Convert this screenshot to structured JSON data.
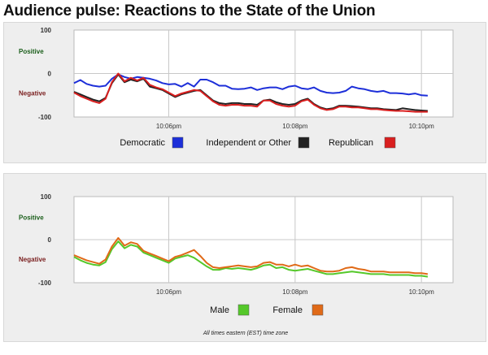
{
  "page": {
    "title": "Audience pulse: Reactions to the State of the Union"
  },
  "colors": {
    "democratic": "#1d2fd9",
    "independent": "#222222",
    "republican": "#d91f1f",
    "male": "#55c82a",
    "female": "#e06a18"
  },
  "footnote": "All times eastern (EST) time zone",
  "chart_data": [
    {
      "type": "line",
      "title": "",
      "xlabel": "",
      "ylabel": "",
      "y_category_labels": {
        "positive": "Positive",
        "negative": "Negative"
      },
      "ylim": [
        -100,
        100
      ],
      "y_ticks": [
        "100",
        "0",
        "-100"
      ],
      "xlim": [
        0,
        60
      ],
      "x_ticks": [
        {
          "t": 15,
          "label": "10:06pm"
        },
        {
          "t": 35,
          "label": "10:08pm"
        },
        {
          "t": 55,
          "label": "10:10pm"
        }
      ],
      "grid": true,
      "legend_position": "bottom",
      "x": [
        0,
        1,
        2,
        3,
        4,
        5,
        6,
        7,
        8,
        9,
        10,
        11,
        12,
        13,
        14,
        15,
        16,
        17,
        18,
        19,
        20,
        21,
        22,
        23,
        24,
        25,
        26,
        27,
        28,
        29,
        30,
        31,
        32,
        33,
        34,
        35,
        36,
        37,
        38,
        39,
        40,
        41,
        42,
        43,
        44,
        45,
        46,
        47,
        48,
        49,
        50,
        51,
        52,
        53,
        54,
        55,
        56
      ],
      "series": [
        {
          "name": "Democratic",
          "color_key": "democratic",
          "values": [
            -22,
            -15,
            -24,
            -28,
            -30,
            -28,
            -12,
            -2,
            -8,
            -12,
            -8,
            -10,
            -12,
            -16,
            -22,
            -25,
            -24,
            -30,
            -22,
            -30,
            -14,
            -14,
            -20,
            -28,
            -28,
            -35,
            -36,
            -35,
            -32,
            -38,
            -34,
            -32,
            -32,
            -36,
            -30,
            -28,
            -34,
            -36,
            -32,
            -40,
            -44,
            -45,
            -44,
            -40,
            -30,
            -34,
            -36,
            -40,
            -42,
            -40,
            -45,
            -45,
            -46,
            -48,
            -46,
            -50,
            -51
          ]
        },
        {
          "name": "Independent or Other",
          "color_key": "independent",
          "values": [
            -42,
            -48,
            -54,
            -60,
            -64,
            -56,
            -22,
            -2,
            -20,
            -14,
            -18,
            -12,
            -30,
            -34,
            -38,
            -46,
            -54,
            -48,
            -44,
            -40,
            -38,
            -50,
            -62,
            -68,
            -70,
            -68,
            -68,
            -70,
            -70,
            -72,
            -62,
            -60,
            -66,
            -70,
            -72,
            -70,
            -62,
            -58,
            -70,
            -78,
            -82,
            -80,
            -74,
            -74,
            -75,
            -76,
            -78,
            -80,
            -80,
            -82,
            -83,
            -84,
            -80,
            -82,
            -84,
            -85,
            -86
          ]
        },
        {
          "name": "Republican",
          "color_key": "republican",
          "values": [
            -44,
            -52,
            -58,
            -64,
            -68,
            -58,
            -20,
            0,
            -18,
            -10,
            -16,
            -10,
            -26,
            -32,
            -36,
            -44,
            -52,
            -46,
            -42,
            -38,
            -40,
            -52,
            -64,
            -72,
            -74,
            -72,
            -72,
            -74,
            -74,
            -76,
            -62,
            -62,
            -70,
            -74,
            -76,
            -74,
            -64,
            -60,
            -72,
            -80,
            -84,
            -82,
            -76,
            -76,
            -78,
            -78,
            -80,
            -82,
            -82,
            -84,
            -85,
            -86,
            -86,
            -87,
            -88,
            -88,
            -88
          ]
        }
      ]
    },
    {
      "type": "line",
      "title": "",
      "xlabel": "",
      "ylabel": "",
      "y_category_labels": {
        "positive": "Positive",
        "negative": "Negative"
      },
      "ylim": [
        -100,
        100
      ],
      "y_ticks": [
        "100",
        "0",
        "-100"
      ],
      "xlim": [
        0,
        60
      ],
      "x_ticks": [
        {
          "t": 15,
          "label": "10:06pm"
        },
        {
          "t": 35,
          "label": "10:08pm"
        },
        {
          "t": 55,
          "label": "10:10pm"
        }
      ],
      "grid": true,
      "legend_position": "bottom",
      "x": [
        0,
        1,
        2,
        3,
        4,
        5,
        6,
        7,
        8,
        9,
        10,
        11,
        12,
        13,
        14,
        15,
        16,
        17,
        18,
        19,
        20,
        21,
        22,
        23,
        24,
        25,
        26,
        27,
        28,
        29,
        30,
        31,
        32,
        33,
        34,
        35,
        36,
        37,
        38,
        39,
        40,
        41,
        42,
        43,
        44,
        45,
        46,
        47,
        48,
        49,
        50,
        51,
        52,
        53,
        54,
        55,
        56
      ],
      "series": [
        {
          "name": "Male",
          "color_key": "male",
          "values": [
            -40,
            -48,
            -54,
            -58,
            -60,
            -52,
            -22,
            -4,
            -20,
            -12,
            -16,
            -30,
            -36,
            -42,
            -48,
            -54,
            -44,
            -40,
            -36,
            -42,
            -52,
            -62,
            -70,
            -70,
            -66,
            -68,
            -66,
            -68,
            -70,
            -66,
            -60,
            -58,
            -66,
            -64,
            -70,
            -72,
            -70,
            -68,
            -72,
            -76,
            -80,
            -80,
            -78,
            -76,
            -74,
            -76,
            -78,
            -80,
            -80,
            -80,
            -82,
            -82,
            -82,
            -82,
            -84,
            -84,
            -86
          ]
        },
        {
          "name": "Female",
          "color_key": "female",
          "values": [
            -36,
            -42,
            -48,
            -52,
            -56,
            -46,
            -16,
            4,
            -14,
            -6,
            -10,
            -26,
            -32,
            -38,
            -44,
            -50,
            -40,
            -36,
            -30,
            -24,
            -38,
            -54,
            -64,
            -66,
            -64,
            -62,
            -60,
            -62,
            -64,
            -62,
            -54,
            -52,
            -58,
            -58,
            -62,
            -58,
            -62,
            -60,
            -66,
            -72,
            -74,
            -74,
            -72,
            -66,
            -64,
            -68,
            -70,
            -74,
            -74,
            -74,
            -76,
            -76,
            -76,
            -76,
            -78,
            -78,
            -80
          ]
        }
      ]
    }
  ]
}
